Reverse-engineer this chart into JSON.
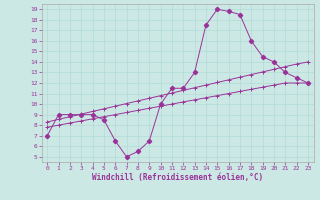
{
  "xlabel": "Windchill (Refroidissement éolien,°C)",
  "bg_color": "#cce8e4",
  "line_color": "#993399",
  "xlim": [
    -0.5,
    23.5
  ],
  "ylim": [
    4.5,
    19.5
  ],
  "xticks": [
    0,
    1,
    2,
    3,
    4,
    5,
    6,
    7,
    8,
    9,
    10,
    11,
    12,
    13,
    14,
    15,
    16,
    17,
    18,
    19,
    20,
    21,
    22,
    23
  ],
  "yticks": [
    5,
    6,
    7,
    8,
    9,
    10,
    11,
    12,
    13,
    14,
    15,
    16,
    17,
    18,
    19
  ],
  "main_x": [
    0,
    1,
    2,
    3,
    4,
    5,
    6,
    7,
    8,
    9,
    10,
    11,
    12,
    13,
    14,
    15,
    16,
    17,
    18,
    19,
    20,
    21,
    22,
    23
  ],
  "main_y": [
    7.0,
    9.0,
    9.0,
    9.0,
    9.0,
    8.5,
    6.5,
    5.0,
    5.5,
    6.5,
    10.0,
    11.5,
    11.5,
    13.0,
    17.5,
    19.0,
    18.8,
    18.5,
    16.0,
    14.5,
    14.0,
    13.0,
    12.5,
    12.0
  ],
  "line2_x": [
    0,
    1,
    2,
    3,
    4,
    5,
    6,
    7,
    8,
    9,
    10,
    11,
    12,
    13,
    14,
    15,
    16,
    17,
    18,
    19,
    20,
    21,
    22,
    23
  ],
  "line2_y": [
    8.3,
    8.55,
    8.8,
    9.05,
    9.3,
    9.55,
    9.8,
    10.05,
    10.3,
    10.55,
    10.8,
    11.05,
    11.3,
    11.55,
    11.8,
    12.05,
    12.3,
    12.55,
    12.8,
    13.05,
    13.3,
    13.55,
    13.8,
    14.0
  ],
  "line3_x": [
    0,
    1,
    2,
    3,
    4,
    5,
    6,
    7,
    8,
    9,
    10,
    11,
    12,
    13,
    14,
    15,
    16,
    17,
    18,
    19,
    20,
    21,
    22,
    23
  ],
  "line3_y": [
    7.8,
    8.0,
    8.2,
    8.4,
    8.6,
    8.8,
    9.0,
    9.2,
    9.4,
    9.6,
    9.8,
    10.0,
    10.2,
    10.4,
    10.6,
    10.8,
    11.0,
    11.2,
    11.4,
    11.6,
    11.8,
    12.0,
    12.0,
    12.0
  ]
}
